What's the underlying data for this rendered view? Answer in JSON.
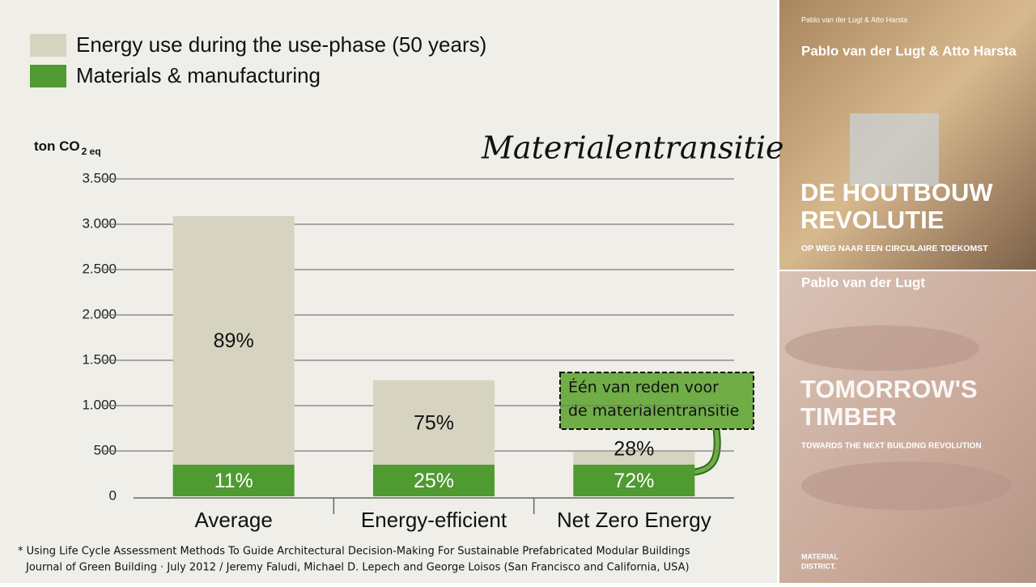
{
  "chart_data": {
    "type": "stacked_bar",
    "title": "Materialentransitie",
    "ylabel": "ton CO",
    "ylabel_sub": "2 eq",
    "categories": [
      "Average",
      "Energy-efficient",
      "Net Zero Energy"
    ],
    "series": [
      {
        "name": "Energy use during the use-phase (50 years)",
        "color": "#d6d3c0",
        "values": [
          2740,
          930,
          140
        ],
        "share_labels": [
          "89%",
          "75%",
          "28%"
        ]
      },
      {
        "name": "Materials & manufacturing",
        "color": "#4f9a31",
        "values": [
          350,
          350,
          350
        ],
        "share_labels": [
          "11%",
          "25%",
          "72%"
        ]
      }
    ],
    "ylim": [
      0,
      3500
    ],
    "yticks": [
      0,
      500,
      {
        "value": 1000,
        "label": "1.000"
      },
      {
        "value": 1500,
        "label": "1.500"
      },
      {
        "value": 2000,
        "label": "2.000"
      },
      {
        "value": 2500,
        "label": "2.500"
      },
      {
        "value": 3000,
        "label": "3.000"
      },
      {
        "value": 3500,
        "label": "3.500"
      }
    ],
    "grid": true,
    "annotation": [
      "Één van reden voor",
      "de materialentransitie"
    ]
  },
  "footnote": [
    "* Using Life Cycle Assessment Methods To Guide Architectural Decision-Making For Sustainable Prefabricated Modular  Buildings",
    "Journal of Green Building · July 2012 / Jeremy Faludi, Michael D. Lepech  and George Loisos (San Francisco and California, USA)"
  ],
  "book1": {
    "authors_small": "Pablo van der Lugt & Atto Harsta",
    "authors": "Pablo van der Lugt & Atto Harsta",
    "title": [
      "DE HOUTBOUW",
      "REVOLUTIE"
    ],
    "subtitle": "OP WEG NAAR EEN CIRCULAIRE TOEKOMST"
  },
  "book2": {
    "author": "Pablo van der Lugt",
    "title": [
      "TOMORROW'S",
      "TIMBER"
    ],
    "subtitle": "TOWARDS THE NEXT BUILDING REVOLUTION",
    "publisher": [
      "MATERIAL",
      "DISTRICT."
    ]
  }
}
